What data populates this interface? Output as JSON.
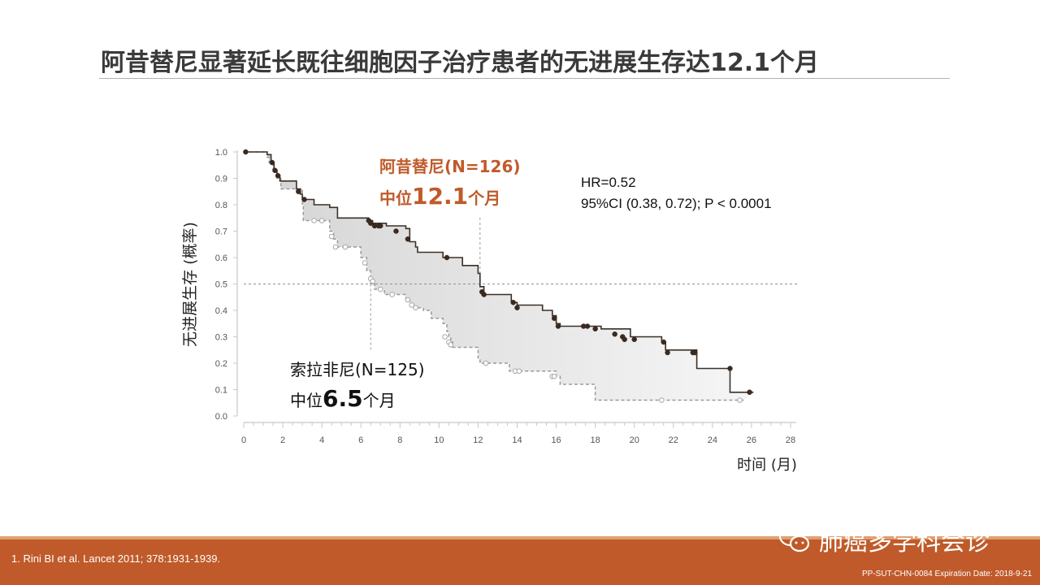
{
  "slide": {
    "title": "阿昔替尼显著延长既往细胞因子治疗患者的无进展生存达12.1个月",
    "reference": "1.   Rini BI et al. Lancet 2011; 378:1931-1939.",
    "footer_code": "PP-SUT-CHN-0084 Expiration Date: 2018-9-21",
    "watermark": "肺癌多学科会诊",
    "watermark_icon": "wechat-icon",
    "colors": {
      "accent": "#c05a2a",
      "axitinib_line": "#3a3028",
      "sorafenib_line": "#9a9a9a",
      "band": "#c05a2a"
    }
  },
  "chart_data": {
    "type": "line",
    "subtype": "kaplan-meier-step",
    "ylabel": "无进展生存 (概率)",
    "xlabel": "时间 (月)",
    "xlim": [
      0,
      28
    ],
    "ylim": [
      0,
      1.0
    ],
    "x_ticks": [
      0,
      2,
      4,
      6,
      8,
      10,
      12,
      14,
      16,
      18,
      20,
      22,
      24,
      26,
      28
    ],
    "y_ticks": [
      "0.0",
      "0.1",
      "0.2",
      "0.3",
      "0.4",
      "0.5",
      "0.6",
      "0.7",
      "0.8",
      "0.9",
      "1.0"
    ],
    "reference_lines": {
      "y": 0.5,
      "x_medians": [
        12.1,
        6.5
      ]
    },
    "stats": {
      "hr": "HR=0.52",
      "ci": "95%CI (0.38, 0.72);  P < 0.0001"
    },
    "series": [
      {
        "name": "阿昔替尼(N=126)",
        "median_prefix": "中位",
        "median_value": "12.1",
        "median_unit": "个月",
        "style": "solid",
        "steps": [
          [
            0,
            1.0
          ],
          [
            1.2,
            0.99
          ],
          [
            1.4,
            0.96
          ],
          [
            1.55,
            0.93
          ],
          [
            1.7,
            0.91
          ],
          [
            1.85,
            0.89
          ],
          [
            2.7,
            0.86
          ],
          [
            2.9,
            0.84
          ],
          [
            3.0,
            0.82
          ],
          [
            3.6,
            0.8
          ],
          [
            4.4,
            0.79
          ],
          [
            4.8,
            0.75
          ],
          [
            6.4,
            0.74
          ],
          [
            6.6,
            0.73
          ],
          [
            7.3,
            0.72
          ],
          [
            8.3,
            0.71
          ],
          [
            8.5,
            0.66
          ],
          [
            8.8,
            0.64
          ],
          [
            8.9,
            0.62
          ],
          [
            10.2,
            0.6
          ],
          [
            11.2,
            0.57
          ],
          [
            12.0,
            0.54
          ],
          [
            12.1,
            0.49
          ],
          [
            12.3,
            0.46
          ],
          [
            13.7,
            0.43
          ],
          [
            14.0,
            0.42
          ],
          [
            15.3,
            0.4
          ],
          [
            15.8,
            0.38
          ],
          [
            16.0,
            0.35
          ],
          [
            16.2,
            0.34
          ],
          [
            18.3,
            0.33
          ],
          [
            19.8,
            0.3
          ],
          [
            21.4,
            0.28
          ],
          [
            21.6,
            0.25
          ],
          [
            23.2,
            0.18
          ],
          [
            24.9,
            0.09
          ],
          [
            26.1,
            0.09
          ]
        ],
        "censor": [
          [
            0.1,
            1.0
          ],
          [
            1.45,
            0.96
          ],
          [
            1.6,
            0.93
          ],
          [
            1.75,
            0.91
          ],
          [
            2.8,
            0.85
          ],
          [
            3.1,
            0.82
          ],
          [
            6.4,
            0.74
          ],
          [
            6.5,
            0.73
          ],
          [
            6.7,
            0.72
          ],
          [
            6.9,
            0.72
          ],
          [
            7.0,
            0.72
          ],
          [
            7.8,
            0.7
          ],
          [
            8.4,
            0.67
          ],
          [
            10.4,
            0.6
          ],
          [
            12.2,
            0.47
          ],
          [
            12.3,
            0.46
          ],
          [
            13.8,
            0.43
          ],
          [
            14.0,
            0.41
          ],
          [
            15.9,
            0.37
          ],
          [
            16.1,
            0.34
          ],
          [
            17.4,
            0.34
          ],
          [
            17.6,
            0.34
          ],
          [
            18.0,
            0.33
          ],
          [
            19.0,
            0.31
          ],
          [
            19.4,
            0.3
          ],
          [
            19.5,
            0.29
          ],
          [
            20.0,
            0.29
          ],
          [
            21.5,
            0.28
          ],
          [
            21.7,
            0.24
          ],
          [
            23.0,
            0.24
          ],
          [
            23.1,
            0.24
          ],
          [
            24.9,
            0.18
          ],
          [
            25.9,
            0.09
          ]
        ]
      },
      {
        "name": "索拉非尼(N=125)",
        "median_prefix": "中位",
        "median_value": "6.5",
        "median_unit": "个月",
        "style": "dashed",
        "steps": [
          [
            0,
            1.0
          ],
          [
            1.2,
            0.98
          ],
          [
            1.3,
            0.96
          ],
          [
            1.5,
            0.93
          ],
          [
            1.7,
            0.9
          ],
          [
            1.9,
            0.86
          ],
          [
            3.0,
            0.8
          ],
          [
            3.05,
            0.74
          ],
          [
            4.4,
            0.7
          ],
          [
            4.6,
            0.67
          ],
          [
            4.8,
            0.64
          ],
          [
            6.0,
            0.6
          ],
          [
            6.3,
            0.55
          ],
          [
            6.5,
            0.5
          ],
          [
            6.7,
            0.48
          ],
          [
            7.2,
            0.46
          ],
          [
            8.3,
            0.44
          ],
          [
            8.5,
            0.42
          ],
          [
            8.7,
            0.41
          ],
          [
            9.2,
            0.4
          ],
          [
            9.6,
            0.37
          ],
          [
            10.2,
            0.35
          ],
          [
            10.4,
            0.32
          ],
          [
            10.5,
            0.3
          ],
          [
            10.6,
            0.28
          ],
          [
            10.7,
            0.26
          ],
          [
            12.0,
            0.22
          ],
          [
            12.1,
            0.2
          ],
          [
            13.6,
            0.17
          ],
          [
            16.0,
            0.15
          ],
          [
            16.2,
            0.12
          ],
          [
            18.0,
            0.06
          ],
          [
            25.6,
            0.06
          ]
        ],
        "censor": [
          [
            3.6,
            0.74
          ],
          [
            4.0,
            0.74
          ],
          [
            4.5,
            0.68
          ],
          [
            4.7,
            0.64
          ],
          [
            5.2,
            0.64
          ],
          [
            6.2,
            0.58
          ],
          [
            6.5,
            0.52
          ],
          [
            6.6,
            0.51
          ],
          [
            7.0,
            0.48
          ],
          [
            7.6,
            0.46
          ],
          [
            8.4,
            0.44
          ],
          [
            8.6,
            0.42
          ],
          [
            8.8,
            0.41
          ],
          [
            10.3,
            0.3
          ],
          [
            10.5,
            0.28
          ],
          [
            10.6,
            0.27
          ],
          [
            12.4,
            0.2
          ],
          [
            13.9,
            0.17
          ],
          [
            14.1,
            0.17
          ],
          [
            15.8,
            0.15
          ],
          [
            15.9,
            0.15
          ],
          [
            21.4,
            0.06
          ],
          [
            25.4,
            0.06
          ]
        ]
      }
    ]
  }
}
